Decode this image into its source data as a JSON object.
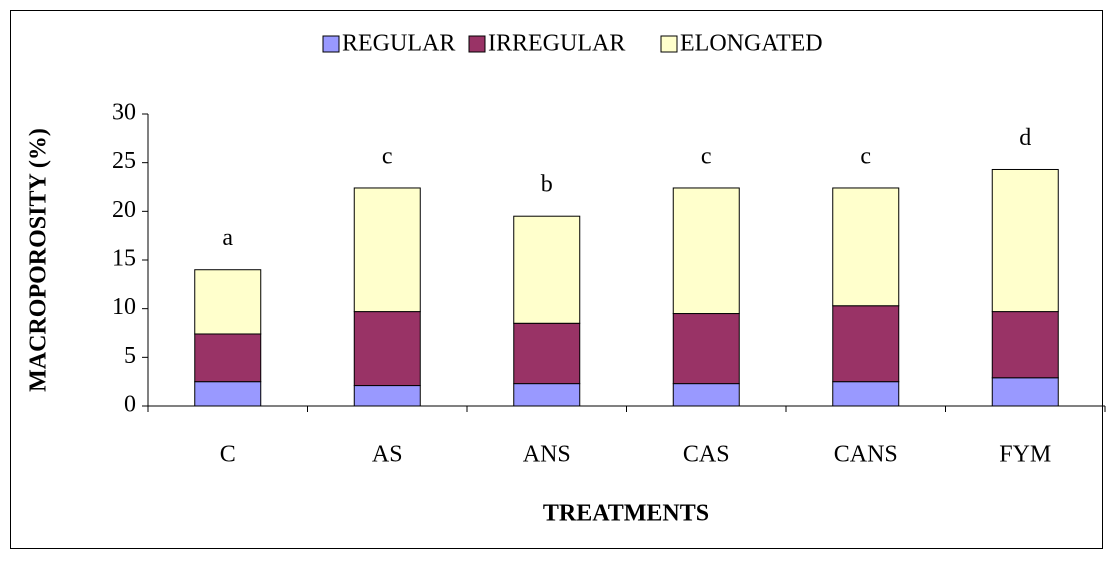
{
  "chart_data": {
    "type": "stacked_bar",
    "x_label": "TREATMENTS",
    "y_label": "MACROPOROSITY (%)",
    "categories": [
      "C",
      "AS",
      "ANS",
      "CAS",
      "CANS",
      "FYM"
    ],
    "series": [
      {
        "name": "REGULAR",
        "color": "#9999ff",
        "values": [
          2.5,
          2.1,
          2.3,
          2.3,
          2.5,
          2.9
        ]
      },
      {
        "name": "IRREGULAR",
        "color": "#993366",
        "values": [
          4.9,
          7.6,
          6.2,
          7.2,
          7.8,
          6.8
        ]
      },
      {
        "name": "ELONGATED",
        "color": "#ffffcc",
        "values": [
          6.6,
          12.7,
          11.0,
          12.9,
          12.1,
          14.6
        ]
      }
    ],
    "annotations": [
      "a",
      "c",
      "b",
      "c",
      "c",
      "d"
    ],
    "ylim": [
      0,
      30
    ],
    "yticks": [
      0,
      5,
      10,
      15,
      20,
      25,
      30
    ],
    "legend": "top"
  }
}
